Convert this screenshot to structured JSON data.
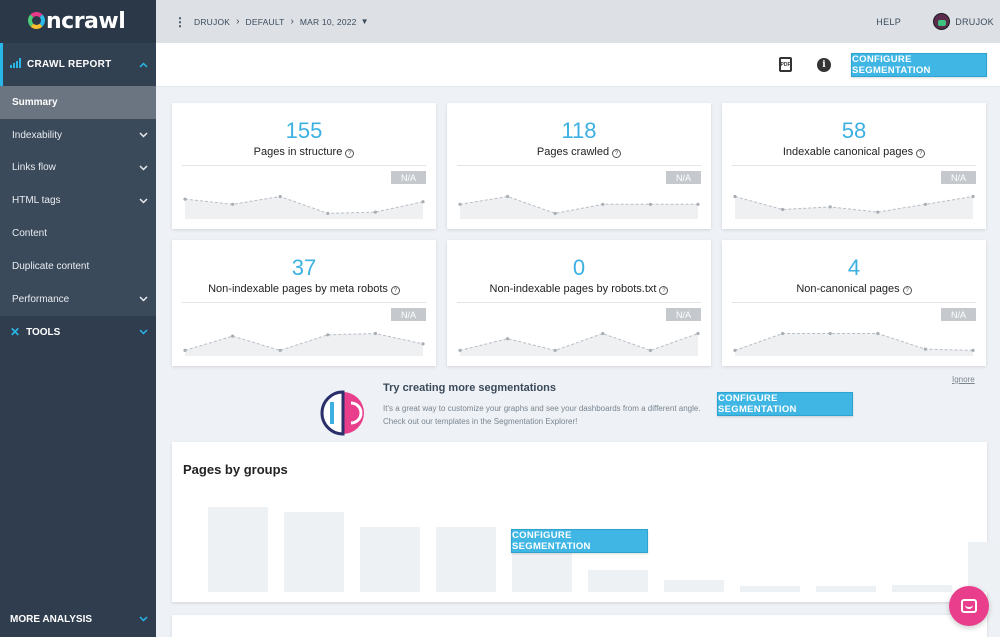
{
  "brand": {
    "name": "oncrawl",
    "logo_rest": "ncrawl"
  },
  "sidebar": {
    "crawl_report": "CRAWL REPORT",
    "items": [
      {
        "label": "Summary",
        "selected": true,
        "expandable": false
      },
      {
        "label": "Indexability",
        "expandable": true
      },
      {
        "label": "Links flow",
        "expandable": true
      },
      {
        "label": "HTML tags",
        "expandable": true
      },
      {
        "label": "Content",
        "expandable": false
      },
      {
        "label": "Duplicate content",
        "expandable": false
      },
      {
        "label": "Performance",
        "expandable": true
      }
    ],
    "tools": "TOOLS",
    "more_analysis": "MORE ANALYSIS"
  },
  "topbar": {
    "breadcrumb": [
      "DRUJOK",
      "DEFAULT",
      "MAR 10, 2022"
    ],
    "help": "HELP",
    "user": "DRUJOK"
  },
  "actionbar": {
    "pdf_label": "PDF",
    "configure_label": "CONFIGURE SEGMENTATION"
  },
  "cards": [
    {
      "value": "155",
      "label": "Pages in structure",
      "badge": "N/A",
      "trend": [
        0.65,
        0.45,
        0.75,
        0.1,
        0.15,
        0.55
      ]
    },
    {
      "value": "118",
      "label": "Pages crawled",
      "badge": "N/A",
      "trend": [
        0.45,
        0.75,
        0.1,
        0.45,
        0.45,
        0.45
      ]
    },
    {
      "value": "58",
      "label": "Indexable canonical pages",
      "badge": "N/A",
      "trend": [
        0.75,
        0.25,
        0.35,
        0.15,
        0.45,
        0.75
      ]
    },
    {
      "value": "37",
      "label": "Non-indexable pages by meta robots",
      "badge": "N/A",
      "trend": [
        0.1,
        0.65,
        0.1,
        0.7,
        0.75,
        0.35
      ]
    },
    {
      "value": "0",
      "label": "Non-indexable pages by robots.txt",
      "badge": "N/A",
      "trend": [
        0.1,
        0.55,
        0.1,
        0.75,
        0.1,
        0.75
      ]
    },
    {
      "value": "4",
      "label": "Non-canonical pages",
      "badge": "N/A",
      "trend": [
        0.1,
        0.75,
        0.75,
        0.75,
        0.15,
        0.1
      ]
    }
  ],
  "promo": {
    "title": "Try creating more segmentations",
    "description": "It's a great way to customize your graphs and see your dashboards from a different angle. Check out our templates in the Segmentation Explorer!",
    "button": "CONFIGURE SEGMENTATION",
    "ignore": "Ignore"
  },
  "groups": {
    "title": "Pages by groups",
    "button": "CONFIGURE SEGMENTATION",
    "placeholder_bars": [
      0.85,
      0.8,
      0.65,
      0.65,
      0.6,
      0.22,
      0.12,
      0.06,
      0.06,
      0.07,
      0.5
    ]
  },
  "colors": {
    "accent": "#3cb1e1",
    "sidebar": "#2f3d4e",
    "chat": "#e83e8c"
  }
}
